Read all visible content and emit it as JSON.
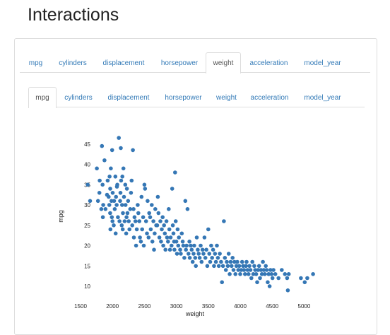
{
  "page": {
    "title": "Interactions"
  },
  "outer_tabs": {
    "items": [
      "mpg",
      "cylinders",
      "displacement",
      "horsepower",
      "weight",
      "acceleration",
      "model_year"
    ],
    "active": "weight"
  },
  "inner_tabs": {
    "items": [
      "mpg",
      "cylinders",
      "displacement",
      "horsepower",
      "weight",
      "acceleration",
      "model_year"
    ],
    "active": "mpg"
  },
  "colors": {
    "point": "#3577b5",
    "link": "#337ab7"
  },
  "chart_data": {
    "type": "scatter",
    "title": "",
    "xlabel": "weight",
    "ylabel": "mpg",
    "xlim": [
      1500,
      5200
    ],
    "ylim": [
      8,
      47
    ],
    "xticks": [
      1500,
      2000,
      2500,
      3000,
      3500,
      4000,
      4500,
      5000
    ],
    "yticks": [
      10,
      15,
      20,
      25,
      30,
      35,
      40,
      45
    ],
    "grid": false,
    "series": [
      {
        "points": [
          [
            1613,
            35
          ],
          [
            1649,
            31
          ],
          [
            1755,
            39
          ],
          [
            1773,
            31
          ],
          [
            1795,
            33
          ],
          [
            1800,
            36
          ],
          [
            1825,
            29
          ],
          [
            1835,
            44.5
          ],
          [
            1845,
            35
          ],
          [
            1850,
            27
          ],
          [
            1855,
            30
          ],
          [
            1875,
            41
          ],
          [
            1890,
            29
          ],
          [
            1915,
            32.5
          ],
          [
            1925,
            36
          ],
          [
            1940,
            32
          ],
          [
            1950,
            30
          ],
          [
            1955,
            37
          ],
          [
            1963,
            28
          ],
          [
            1965,
            34
          ],
          [
            1968,
            24
          ],
          [
            1975,
            39
          ],
          [
            1985,
            31
          ],
          [
            1990,
            27
          ],
          [
            1995,
            43.5
          ],
          [
            2000,
            26
          ],
          [
            2003,
            33
          ],
          [
            2020,
            25
          ],
          [
            2025,
            31
          ],
          [
            2035,
            29
          ],
          [
            2045,
            37
          ],
          [
            2050,
            23
          ],
          [
            2055,
            32
          ],
          [
            2065,
            30
          ],
          [
            2070,
            34.5
          ],
          [
            2075,
            35
          ],
          [
            2085,
            27
          ],
          [
            2100,
            46.5
          ],
          [
            2110,
            26
          ],
          [
            2120,
            31
          ],
          [
            2125,
            33
          ],
          [
            2130,
            44
          ],
          [
            2135,
            36
          ],
          [
            2145,
            25
          ],
          [
            2150,
            30
          ],
          [
            2155,
            37
          ],
          [
            2160,
            24
          ],
          [
            2164,
            28
          ],
          [
            2171,
            39
          ],
          [
            2180,
            32
          ],
          [
            2190,
            26
          ],
          [
            2200,
            35
          ],
          [
            2205,
            30
          ],
          [
            2215,
            23
          ],
          [
            2220,
            27
          ],
          [
            2226,
            34
          ],
          [
            2234,
            28
          ],
          [
            2245,
            31
          ],
          [
            2254,
            26
          ],
          [
            2265,
            24
          ],
          [
            2278,
            29
          ],
          [
            2290,
            33
          ],
          [
            2300,
            36
          ],
          [
            2310,
            25
          ],
          [
            2320,
            43.5
          ],
          [
            2330,
            29
          ],
          [
            2335,
            22
          ],
          [
            2345,
            27
          ],
          [
            2360,
            26
          ],
          [
            2370,
            20
          ],
          [
            2380,
            24
          ],
          [
            2395,
            30
          ],
          [
            2405,
            28
          ],
          [
            2420,
            26
          ],
          [
            2430,
            22
          ],
          [
            2445,
            21
          ],
          [
            2455,
            32
          ],
          [
            2465,
            24
          ],
          [
            2480,
            27
          ],
          [
            2490,
            20
          ],
          [
            2500,
            35
          ],
          [
            2510,
            34
          ],
          [
            2525,
            26
          ],
          [
            2540,
            23
          ],
          [
            2550,
            31
          ],
          [
            2565,
            22
          ],
          [
            2575,
            28
          ],
          [
            2590,
            27
          ],
          [
            2600,
            24
          ],
          [
            2615,
            30
          ],
          [
            2625,
            21
          ],
          [
            2640,
            26
          ],
          [
            2650,
            19
          ],
          [
            2660,
            23
          ],
          [
            2670,
            29
          ],
          [
            2685,
            25
          ],
          [
            2700,
            25
          ],
          [
            2710,
            32
          ],
          [
            2720,
            28
          ],
          [
            2735,
            22
          ],
          [
            2750,
            26
          ],
          [
            2760,
            21
          ],
          [
            2772,
            24
          ],
          [
            2785,
            27
          ],
          [
            2795,
            20
          ],
          [
            2807,
            25
          ],
          [
            2820,
            23
          ],
          [
            2830,
            19
          ],
          [
            2845,
            26
          ],
          [
            2855,
            22
          ],
          [
            2870,
            21
          ],
          [
            2880,
            29
          ],
          [
            2890,
            24
          ],
          [
            2900,
            19
          ],
          [
            2910,
            22
          ],
          [
            2925,
            20
          ],
          [
            2935,
            34
          ],
          [
            2945,
            25
          ],
          [
            2955,
            23
          ],
          [
            2965,
            21
          ],
          [
            2970,
            19
          ],
          [
            2980,
            38
          ],
          [
            2990,
            26
          ],
          [
            3000,
            21
          ],
          [
            3010,
            18
          ],
          [
            3020,
            24
          ],
          [
            3030,
            20
          ],
          [
            3040,
            22
          ],
          [
            3060,
            19
          ],
          [
            3070,
            18
          ],
          [
            3085,
            23
          ],
          [
            3100,
            21
          ],
          [
            3110,
            20
          ],
          [
            3125,
            17
          ],
          [
            3140,
            31
          ],
          [
            3150,
            19
          ],
          [
            3160,
            20
          ],
          [
            3175,
            29
          ],
          [
            3190,
            18
          ],
          [
            3205,
            21
          ],
          [
            3210,
            17
          ],
          [
            3225,
            20
          ],
          [
            3240,
            19
          ],
          [
            3255,
            16
          ],
          [
            3270,
            18
          ],
          [
            3280,
            20
          ],
          [
            3295,
            17
          ],
          [
            3305,
            15
          ],
          [
            3320,
            22
          ],
          [
            3335,
            19
          ],
          [
            3350,
            18
          ],
          [
            3365,
            17
          ],
          [
            3380,
            20
          ],
          [
            3395,
            16
          ],
          [
            3410,
            19
          ],
          [
            3425,
            18
          ],
          [
            3440,
            22
          ],
          [
            3455,
            17
          ],
          [
            3470,
            19
          ],
          [
            3485,
            15
          ],
          [
            3500,
            24
          ],
          [
            3515,
            18
          ],
          [
            3530,
            16
          ],
          [
            3545,
            20
          ],
          [
            3560,
            17
          ],
          [
            3575,
            19
          ],
          [
            3590,
            15
          ],
          [
            3605,
            18
          ],
          [
            3620,
            16
          ],
          [
            3635,
            20
          ],
          [
            3650,
            17
          ],
          [
            3665,
            15
          ],
          [
            3680,
            18
          ],
          [
            3700,
            16
          ],
          [
            3715,
            11
          ],
          [
            3730,
            15
          ],
          [
            3745,
            26
          ],
          [
            3760,
            17
          ],
          [
            3775,
            14
          ],
          [
            3790,
            16
          ],
          [
            3805,
            15
          ],
          [
            3820,
            18
          ],
          [
            3835,
            13
          ],
          [
            3850,
            16
          ],
          [
            3865,
            15
          ],
          [
            3880,
            17
          ],
          [
            3895,
            14
          ],
          [
            3910,
            16
          ],
          [
            3925,
            13
          ],
          [
            3940,
            15
          ],
          [
            3955,
            16
          ],
          [
            3970,
            14
          ],
          [
            3985,
            15
          ],
          [
            4000,
            13
          ],
          [
            4015,
            14
          ],
          [
            4030,
            16
          ],
          [
            4045,
            15
          ],
          [
            4060,
            14
          ],
          [
            4075,
            13
          ],
          [
            4090,
            15
          ],
          [
            4100,
            16
          ],
          [
            4115,
            14
          ],
          [
            4130,
            13
          ],
          [
            4145,
            15
          ],
          [
            4160,
            14
          ],
          [
            4175,
            12
          ],
          [
            4190,
            16
          ],
          [
            4205,
            13
          ],
          [
            4220,
            15
          ],
          [
            4235,
            14
          ],
          [
            4250,
            13
          ],
          [
            4265,
            11
          ],
          [
            4280,
            14
          ],
          [
            4295,
            15
          ],
          [
            4310,
            12
          ],
          [
            4325,
            14
          ],
          [
            4340,
            13
          ],
          [
            4355,
            16
          ],
          [
            4370,
            14
          ],
          [
            4385,
            13
          ],
          [
            4400,
            15
          ],
          [
            4415,
            14
          ],
          [
            4430,
            11
          ],
          [
            4445,
            13
          ],
          [
            4460,
            10
          ],
          [
            4475,
            14
          ],
          [
            4490,
            13
          ],
          [
            4505,
            12
          ],
          [
            4520,
            14
          ],
          [
            4550,
            13
          ],
          [
            4600,
            12
          ],
          [
            4650,
            14
          ],
          [
            4700,
            13
          ],
          [
            4735,
            12
          ],
          [
            4746,
            9
          ],
          [
            4760,
            13
          ],
          [
            4950,
            12
          ],
          [
            5010,
            11
          ],
          [
            5050,
            12
          ],
          [
            5140,
            13
          ]
        ]
      }
    ]
  }
}
